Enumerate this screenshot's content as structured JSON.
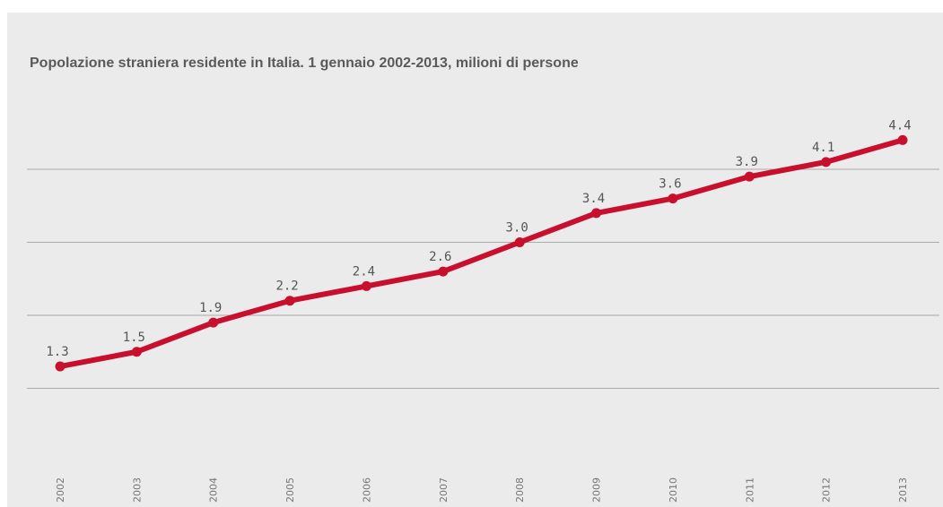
{
  "colors": {
    "series": "#c8102e",
    "background": "#ebebeb",
    "grid": "#aaaaaa"
  },
  "chart_data": {
    "type": "line",
    "title": "Popolazione straniera residente in Italia. 1 gennaio 2002-2013, milioni di persone",
    "xlabel": "",
    "ylabel": "",
    "categories": [
      "2002",
      "2003",
      "2004",
      "2005",
      "2006",
      "2007",
      "2008",
      "2009",
      "2010",
      "2011",
      "2012",
      "2013"
    ],
    "series": [
      {
        "values": [
          1.3,
          1.5,
          1.9,
          2.2,
          2.4,
          2.6,
          3.0,
          3.4,
          3.6,
          3.9,
          4.1,
          4.4
        ],
        "labels": [
          "1.3",
          "1.5",
          "1.9",
          "2.2",
          "2.4",
          "2.6",
          "3.0",
          "3.4",
          "3.6",
          "3.9",
          "4.1",
          "4.4"
        ]
      }
    ],
    "ylim": [
      0,
      5
    ],
    "gridlines_y": [
      1,
      2,
      3,
      4
    ],
    "grid": true,
    "y_tick_labels_shown": false,
    "x_tick_label_orientation": "vertical",
    "legend": "none"
  }
}
